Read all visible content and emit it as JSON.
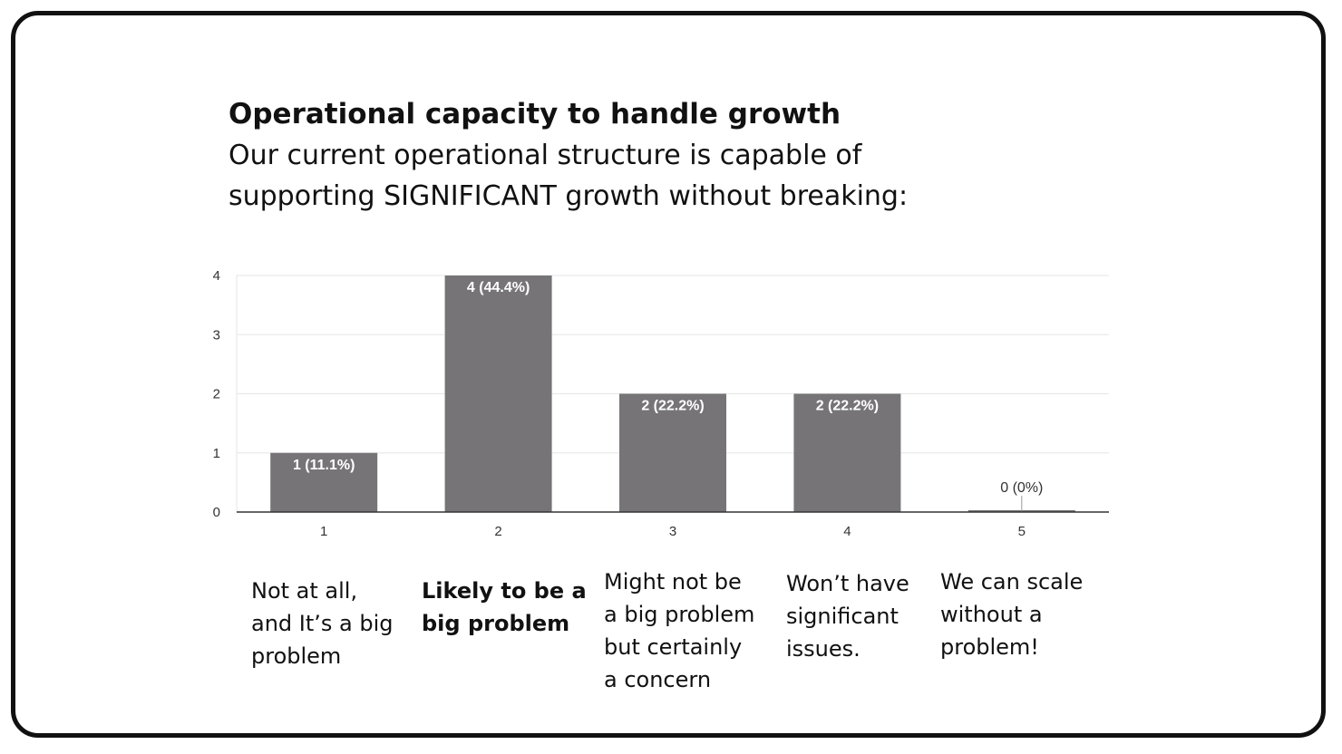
{
  "heading": {
    "title": "Operational capacity to handle growth",
    "subtitle_line1": "Our current operational structure is capable of",
    "subtitle_line2": "supporting SIGNIFICANT growth without breaking:"
  },
  "chart_data": {
    "type": "bar",
    "categories": [
      "1",
      "2",
      "3",
      "4",
      "5"
    ],
    "values": [
      1,
      4,
      2,
      2,
      0
    ],
    "data_labels": [
      "1 (11.1%)",
      "4 (44.4%)",
      "2 (22.2%)",
      "2 (22.2%)",
      "0 (0%)"
    ],
    "ylim": [
      0,
      4
    ],
    "yticks": [
      "0",
      "1",
      "2",
      "3",
      "4"
    ],
    "grid": true,
    "bar_color": "#767477",
    "title": "",
    "xlabel": "",
    "ylabel": ""
  },
  "captions": [
    {
      "text": "Not at all,\nand It’s a big\nproblem",
      "bold": false
    },
    {
      "text": "Likely to be a\nbig problem",
      "bold": true
    },
    {
      "text": "Might not be\na big problem\nbut certainly\na concern",
      "bold": false
    },
    {
      "text": "Won’t have\nsignificant\nissues.",
      "bold": false
    },
    {
      "text": "We can scale\nwithout a\nproblem!",
      "bold": false
    }
  ]
}
